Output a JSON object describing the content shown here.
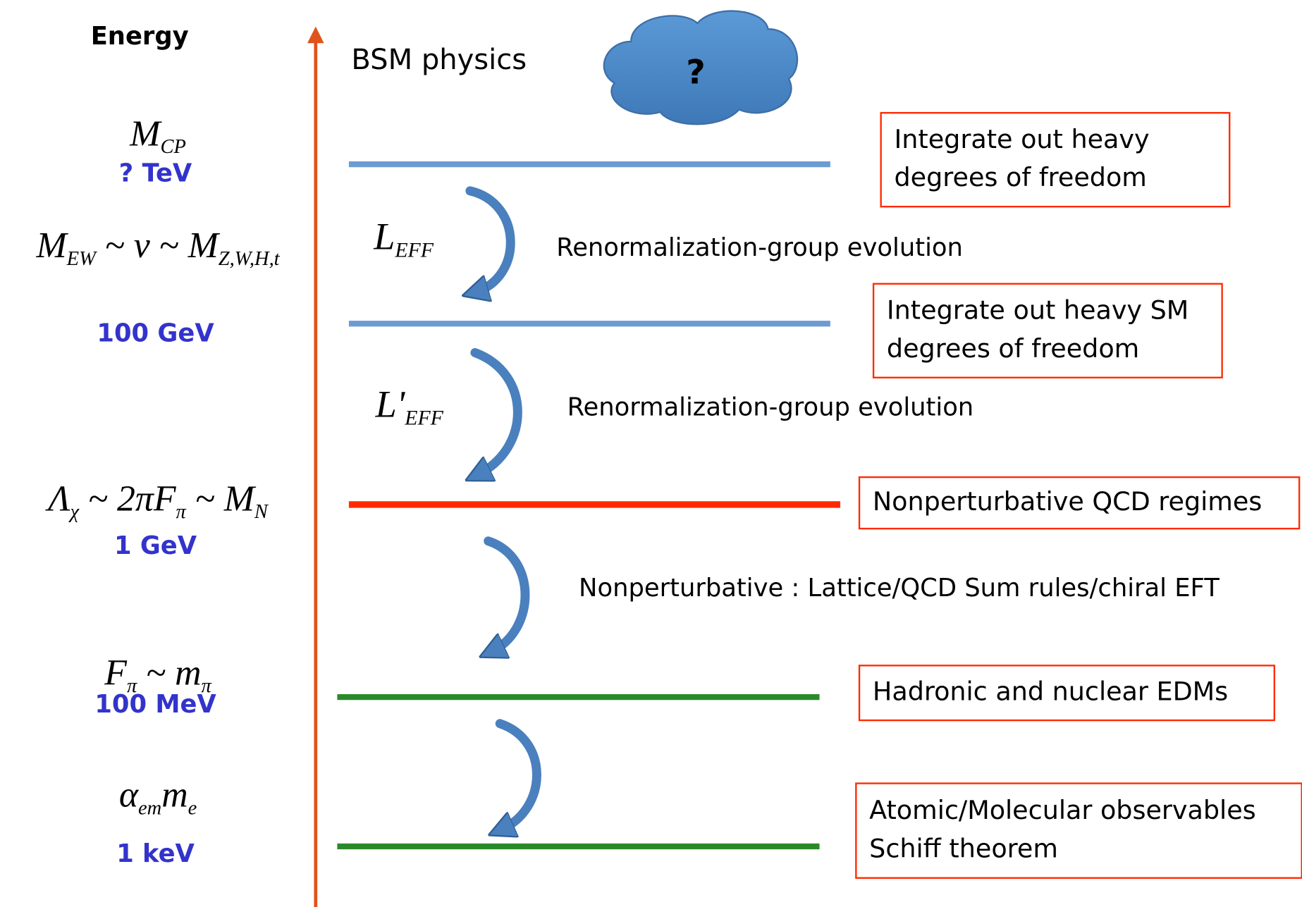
{
  "axis_label": "Energy",
  "top": {
    "label": "BSM physics",
    "cloud": "?"
  },
  "scales": [
    {
      "symbol": [
        "M",
        "CP"
      ],
      "energy": "? TeV"
    },
    {
      "symbol": [
        "M",
        "EW",
        " ~ v ~ M",
        "Z,W,H,t"
      ],
      "energy": "100 GeV"
    },
    {
      "symbol": [
        "Λ",
        "χ",
        " ~ 2πF",
        "π",
        " ~ M",
        "N"
      ],
      "energy": "1 GeV"
    },
    {
      "symbol": [
        "F",
        "π",
        " ~ m",
        "π"
      ],
      "energy": "100 MeV"
    },
    {
      "symbol": [
        "α",
        "em",
        "m",
        "e"
      ],
      "energy": "1 keV"
    }
  ],
  "lagrangians": [
    [
      "L",
      "EFF"
    ],
    [
      "L'",
      "EFF"
    ]
  ],
  "evolution": [
    "Renormalization-group evolution",
    "Renormalization-group evolution",
    "Nonperturbative  : Lattice/QCD Sum rules/chiral EFT"
  ],
  "boxes": [
    [
      "Integrate out heavy",
      "degrees of freedom"
    ],
    [
      "Integrate out heavy SM",
      "degrees of freedom"
    ],
    [
      "Nonperturbative QCD regimes"
    ],
    [
      "Hadronic and nuclear EDMs"
    ],
    [
      "Atomic/Molecular observables",
      "Schiff theorem"
    ]
  ]
}
